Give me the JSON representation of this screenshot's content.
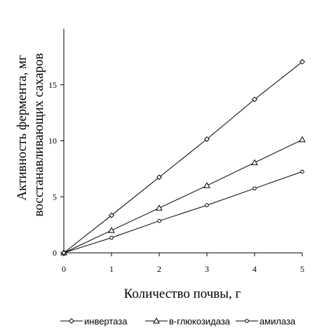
{
  "chart_data": {
    "type": "line",
    "xlabel": "Количество почвы, г",
    "ylabel_line1": "Активность фермента, мг",
    "ylabel_line2": "восстанавливающих сахаров",
    "x": [
      0,
      1,
      2,
      3,
      4,
      5
    ],
    "xlim": [
      0,
      5
    ],
    "ylim": [
      0,
      20
    ],
    "xticks": [
      "0",
      "1",
      "2",
      "3",
      "4",
      "5"
    ],
    "yticks": [
      "0",
      "5",
      "10",
      "15"
    ],
    "ytick_values": [
      0,
      5,
      10,
      15
    ],
    "grid": false,
    "legend_position": "bottom",
    "series": [
      {
        "name": "инвертаза",
        "marker": "diamond",
        "values": [
          0,
          3.35,
          6.75,
          10.15,
          13.7,
          17.05
        ]
      },
      {
        "name": "в-глюкозидаза",
        "marker": "triangle",
        "values": [
          0,
          2.0,
          4.0,
          6.0,
          8.05,
          10.1
        ]
      },
      {
        "name": "амилаза",
        "marker": "circle",
        "values": [
          0,
          1.35,
          2.85,
          4.25,
          5.75,
          7.25
        ]
      }
    ],
    "line_color": "#000000"
  }
}
